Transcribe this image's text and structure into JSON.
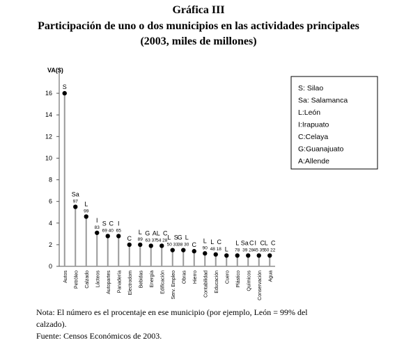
{
  "chart_data": {
    "type": "lollipop",
    "title": "Gráfica III",
    "subtitle": "Participación de uno o dos municipios en las actividades principales",
    "subtitle2": "(2003, miles de millones)",
    "y_label": "VA($)",
    "categories": [
      "Autos",
      "Petróleo",
      "Calzado",
      "Lácteos",
      "Autopartes",
      "Panadería",
      "Electrodom",
      "Bebidas",
      "Energía",
      "Edificación",
      "Serv. Empleo",
      "Obras",
      "Hierro",
      "Contabilidad",
      "Educación",
      "Cuero",
      "Plástico",
      "Químicos",
      "Conservación",
      "Agua"
    ],
    "values": [
      16,
      5.5,
      4.6,
      3.1,
      2.8,
      2.8,
      2.0,
      2.0,
      1.9,
      1.9,
      1.5,
      1.5,
      1.4,
      1.2,
      1.1,
      1.0,
      1.0,
      1.0,
      1.0,
      1.0
    ],
    "municipios": [
      [
        "S"
      ],
      [
        "Sa"
      ],
      [
        "L"
      ],
      [
        "I"
      ],
      [
        "S",
        "C"
      ],
      [
        "I"
      ],
      [
        "C"
      ],
      [
        "L"
      ],
      [
        "G",
        "A"
      ],
      [
        "L",
        "C"
      ],
      [
        "L",
        "S"
      ],
      [
        "G",
        "L"
      ],
      [
        "C"
      ],
      [
        "L"
      ],
      [
        "L",
        "C"
      ],
      [
        "L"
      ],
      [
        "L"
      ],
      [
        "Sa",
        "C"
      ],
      [
        "I",
        "C"
      ],
      [
        "L",
        "C"
      ]
    ],
    "shares": [
      [],
      [
        97
      ],
      [
        99
      ],
      [
        83
      ],
      [
        69,
        40
      ],
      [
        65
      ],
      [],
      [
        89
      ],
      [
        63,
        37
      ],
      [
        54,
        28
      ],
      [
        50,
        33
      ],
      [
        38,
        30
      ],
      [],
      [
        90
      ],
      [
        48,
        18
      ],
      [],
      [
        78
      ],
      [
        39,
        28
      ],
      [
        45,
        35
      ],
      [
        50,
        22
      ]
    ],
    "ylim": [
      0,
      18
    ],
    "yticks": [
      0,
      2,
      4,
      6,
      8,
      10,
      12,
      14,
      16
    ],
    "color": "#000000",
    "legend": [
      "S: Silao",
      "Sa: Salamanca",
      "L:León",
      "I:Irapuato",
      "C:Celaya",
      "G:Guanajuato",
      "A:Allende"
    ],
    "notes": [
      "Nota: El número es el procentaje en ese municipio (por ejemplo, León = 99% del",
      "calzado).",
      "Fuente: Censos Económicos de 2003."
    ]
  }
}
